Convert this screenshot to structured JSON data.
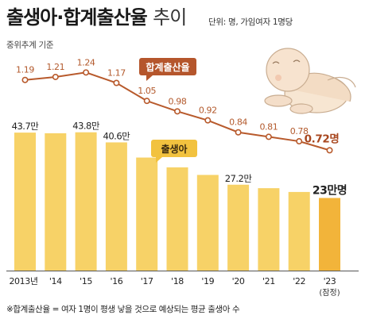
{
  "header": {
    "title_main": "출생아·합계출산율",
    "title_sub": "추이",
    "unit": "단위: 명, 가임여자 1명당",
    "basis": "중위추계 기준"
  },
  "footnote": "※합계출산율 = 여자 1명이 평생 낳을 것으로 예상되는 평균 출생아 수",
  "colors": {
    "bar": "#f7d267",
    "bar_highlight": "#f2b43a",
    "line": "#b85a2c",
    "line_label": "#b35a2d",
    "callout_line": "#b5562c",
    "callout_bar": "#f2c23f"
  },
  "chart_data": [
    {
      "type": "line",
      "series": [
        {
          "name": "합계출산율",
          "x": [
            "2013년",
            "'14",
            "'15",
            "'16",
            "'17",
            "'18",
            "'19",
            "'20",
            "'21",
            "'22",
            "'23"
          ],
          "values": [
            1.19,
            1.21,
            1.24,
            1.17,
            1.05,
            0.98,
            0.92,
            0.84,
            0.81,
            0.78,
            0.72
          ]
        }
      ],
      "value_labels": [
        "1.19",
        "1.21",
        "1.24",
        "1.17",
        "1.05",
        "0.98",
        "0.92",
        "0.84",
        "0.81",
        "0.78",
        "0.72명"
      ],
      "ylim": [
        0.6,
        1.3
      ]
    },
    {
      "type": "bar",
      "categories": [
        "2013년",
        "'14",
        "'15",
        "'16",
        "'17",
        "'18",
        "'19",
        "'20",
        "'21",
        "'22",
        "'23"
      ],
      "category_note": {
        "index": 10,
        "text": "(잠정)"
      },
      "series": [
        {
          "name": "출생아",
          "values": [
            43.7,
            43.5,
            43.8,
            40.6,
            35.8,
            32.7,
            30.3,
            27.2,
            26.1,
            24.9,
            23
          ]
        }
      ],
      "value_labels": [
        "43.7만",
        "",
        "43.8만",
        "40.6만",
        "",
        "",
        "",
        "27.2만",
        "",
        "",
        "23만명"
      ],
      "ylim": [
        0,
        48
      ]
    }
  ]
}
